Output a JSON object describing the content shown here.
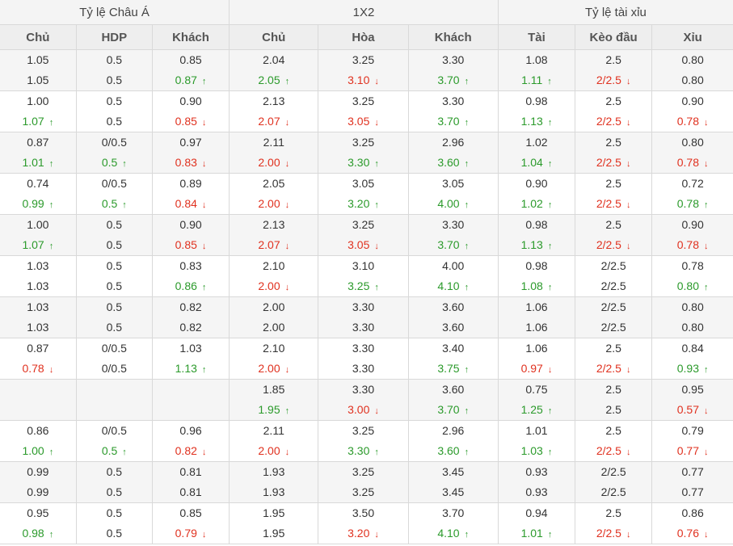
{
  "header": {
    "groups": [
      "Tỷ lệ Châu Á",
      "1X2",
      "Tỷ lệ tài xỉu"
    ],
    "columns": [
      "Chủ",
      "HDP",
      "Khách",
      "Chủ",
      "Hòa",
      "Khách",
      "Tài",
      "Kèo đầu",
      "Xỉu"
    ]
  },
  "icons": {
    "up": "arrow-up-icon",
    "down": "arrow-down-icon"
  },
  "colors": {
    "up": "#2b9a2b",
    "down": "#e0311f",
    "neutral": "#333333"
  },
  "rows": [
    [
      [
        "1.05",
        "1.05",
        ""
      ],
      [
        "0.5",
        "0.5",
        ""
      ],
      [
        "0.85",
        "0.87",
        "up"
      ],
      [
        "2.04",
        "2.05",
        "up"
      ],
      [
        "3.25",
        "3.10",
        "down"
      ],
      [
        "3.30",
        "3.70",
        "up"
      ],
      [
        "1.08",
        "1.11",
        "up"
      ],
      [
        "2.5",
        "2/2.5",
        "down"
      ],
      [
        "0.80",
        "0.80",
        ""
      ]
    ],
    [
      [
        "1.00",
        "1.07",
        "up"
      ],
      [
        "0.5",
        "0.5",
        ""
      ],
      [
        "0.90",
        "0.85",
        "down"
      ],
      [
        "2.13",
        "2.07",
        "down"
      ],
      [
        "3.25",
        "3.05",
        "down"
      ],
      [
        "3.30",
        "3.70",
        "up"
      ],
      [
        "0.98",
        "1.13",
        "up"
      ],
      [
        "2.5",
        "2/2.5",
        "down"
      ],
      [
        "0.90",
        "0.78",
        "down"
      ]
    ],
    [
      [
        "0.87",
        "1.01",
        "up"
      ],
      [
        "0/0.5",
        "0.5",
        "up"
      ],
      [
        "0.97",
        "0.83",
        "down"
      ],
      [
        "2.11",
        "2.00",
        "down"
      ],
      [
        "3.25",
        "3.30",
        "up"
      ],
      [
        "2.96",
        "3.60",
        "up"
      ],
      [
        "1.02",
        "1.04",
        "up"
      ],
      [
        "2.5",
        "2/2.5",
        "down"
      ],
      [
        "0.80",
        "0.78",
        "down"
      ]
    ],
    [
      [
        "0.74",
        "0.99",
        "up"
      ],
      [
        "0/0.5",
        "0.5",
        "up"
      ],
      [
        "0.89",
        "0.84",
        "down"
      ],
      [
        "2.05",
        "2.00",
        "down"
      ],
      [
        "3.05",
        "3.20",
        "up"
      ],
      [
        "3.05",
        "4.00",
        "up"
      ],
      [
        "0.90",
        "1.02",
        "up"
      ],
      [
        "2.5",
        "2/2.5",
        "down"
      ],
      [
        "0.72",
        "0.78",
        "up"
      ]
    ],
    [
      [
        "1.00",
        "1.07",
        "up"
      ],
      [
        "0.5",
        "0.5",
        ""
      ],
      [
        "0.90",
        "0.85",
        "down"
      ],
      [
        "2.13",
        "2.07",
        "down"
      ],
      [
        "3.25",
        "3.05",
        "down"
      ],
      [
        "3.30",
        "3.70",
        "up"
      ],
      [
        "0.98",
        "1.13",
        "up"
      ],
      [
        "2.5",
        "2/2.5",
        "down"
      ],
      [
        "0.90",
        "0.78",
        "down"
      ]
    ],
    [
      [
        "1.03",
        "1.03",
        ""
      ],
      [
        "0.5",
        "0.5",
        ""
      ],
      [
        "0.83",
        "0.86",
        "up"
      ],
      [
        "2.10",
        "2.00",
        "down"
      ],
      [
        "3.10",
        "3.25",
        "up"
      ],
      [
        "4.00",
        "4.10",
        "up"
      ],
      [
        "0.98",
        "1.08",
        "up"
      ],
      [
        "2/2.5",
        "2/2.5",
        ""
      ],
      [
        "0.78",
        "0.80",
        "up"
      ]
    ],
    [
      [
        "1.03",
        "1.03",
        ""
      ],
      [
        "0.5",
        "0.5",
        ""
      ],
      [
        "0.82",
        "0.82",
        ""
      ],
      [
        "2.00",
        "2.00",
        ""
      ],
      [
        "3.30",
        "3.30",
        ""
      ],
      [
        "3.60",
        "3.60",
        ""
      ],
      [
        "1.06",
        "1.06",
        ""
      ],
      [
        "2/2.5",
        "2/2.5",
        ""
      ],
      [
        "0.80",
        "0.80",
        ""
      ]
    ],
    [
      [
        "0.87",
        "0.78",
        "down"
      ],
      [
        "0/0.5",
        "0/0.5",
        ""
      ],
      [
        "1.03",
        "1.13",
        "up"
      ],
      [
        "2.10",
        "2.00",
        "down"
      ],
      [
        "3.30",
        "3.30",
        ""
      ],
      [
        "3.40",
        "3.75",
        "up"
      ],
      [
        "1.06",
        "0.97",
        "down"
      ],
      [
        "2.5",
        "2/2.5",
        "down"
      ],
      [
        "0.84",
        "0.93",
        "up"
      ]
    ],
    [
      [
        "",
        "",
        ""
      ],
      [
        "",
        "",
        ""
      ],
      [
        "",
        "",
        ""
      ],
      [
        "1.85",
        "1.95",
        "up"
      ],
      [
        "3.30",
        "3.00",
        "down"
      ],
      [
        "3.60",
        "3.70",
        "up"
      ],
      [
        "0.75",
        "1.25",
        "up"
      ],
      [
        "2.5",
        "2.5",
        ""
      ],
      [
        "0.95",
        "0.57",
        "down"
      ]
    ],
    [
      [
        "0.86",
        "1.00",
        "up"
      ],
      [
        "0/0.5",
        "0.5",
        "up"
      ],
      [
        "0.96",
        "0.82",
        "down"
      ],
      [
        "2.11",
        "2.00",
        "down"
      ],
      [
        "3.25",
        "3.30",
        "up"
      ],
      [
        "2.96",
        "3.60",
        "up"
      ],
      [
        "1.01",
        "1.03",
        "up"
      ],
      [
        "2.5",
        "2/2.5",
        "down"
      ],
      [
        "0.79",
        "0.77",
        "down"
      ]
    ],
    [
      [
        "0.99",
        "0.99",
        ""
      ],
      [
        "0.5",
        "0.5",
        ""
      ],
      [
        "0.81",
        "0.81",
        ""
      ],
      [
        "1.93",
        "1.93",
        ""
      ],
      [
        "3.25",
        "3.25",
        ""
      ],
      [
        "3.45",
        "3.45",
        ""
      ],
      [
        "0.93",
        "0.93",
        ""
      ],
      [
        "2/2.5",
        "2/2.5",
        ""
      ],
      [
        "0.77",
        "0.77",
        ""
      ]
    ],
    [
      [
        "0.95",
        "0.98",
        "up"
      ],
      [
        "0.5",
        "0.5",
        ""
      ],
      [
        "0.85",
        "0.79",
        "down"
      ],
      [
        "1.95",
        "1.95",
        ""
      ],
      [
        "3.50",
        "3.20",
        "down"
      ],
      [
        "3.70",
        "4.10",
        "up"
      ],
      [
        "0.94",
        "1.01",
        "up"
      ],
      [
        "2.5",
        "2/2.5",
        "down"
      ],
      [
        "0.86",
        "0.76",
        "down"
      ]
    ]
  ]
}
